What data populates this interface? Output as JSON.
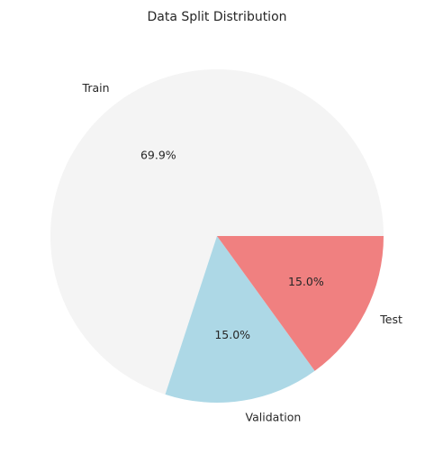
{
  "chart_data": {
    "type": "pie",
    "title": "Data Split Distribution",
    "slices": [
      {
        "label": "Train",
        "value": 69.9,
        "pct_label": "69.9%",
        "color": "#f4f4f4"
      },
      {
        "label": "Validation",
        "value": 15.0,
        "pct_label": "15.0%",
        "color": "#add8e6"
      },
      {
        "label": "Test",
        "value": 15.0,
        "pct_label": "15.0%",
        "color": "#f08080"
      }
    ],
    "start_angle_deg": 0,
    "direction": "counterclockwise"
  }
}
